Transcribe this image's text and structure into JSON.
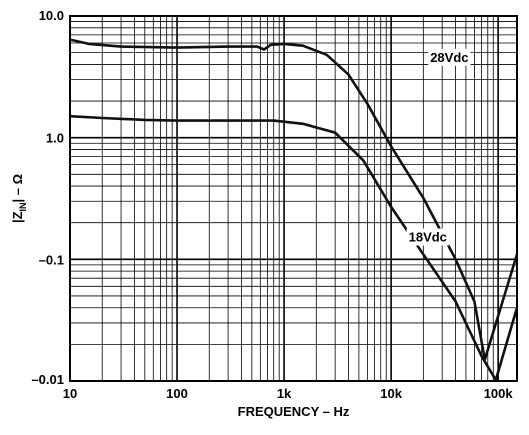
{
  "chart_data": {
    "type": "line",
    "xlabel": "FREQUENCY – Hz",
    "ylabel_main": "|Z",
    "ylabel_sub": "IN",
    "ylabel_tail": "| – Ω",
    "x_scale": "log",
    "y_scale": "log",
    "xlim": [
      10,
      150000
    ],
    "ylim": [
      0.01,
      10
    ],
    "grid": true,
    "x_ticks": [
      {
        "value": 10,
        "label": "10"
      },
      {
        "value": 100,
        "label": "100"
      },
      {
        "value": 1000,
        "label": "1k"
      },
      {
        "value": 10000,
        "label": "10k"
      },
      {
        "value": 100000,
        "label": "100k"
      }
    ],
    "y_ticks": [
      {
        "value": 10,
        "label": "10.0"
      },
      {
        "value": 1,
        "label": "1.0"
      },
      {
        "value": 0.1,
        "label": "–0.1"
      },
      {
        "value": 0.01,
        "label": "–0.01"
      }
    ],
    "series": [
      {
        "name": "28Vdc",
        "points": [
          [
            10,
            6.4
          ],
          [
            15,
            5.9
          ],
          [
            30,
            5.6
          ],
          [
            100,
            5.5
          ],
          [
            300,
            5.6
          ],
          [
            560,
            5.6
          ],
          [
            650,
            5.3
          ],
          [
            750,
            5.8
          ],
          [
            1000,
            5.9
          ],
          [
            1500,
            5.7
          ],
          [
            2500,
            4.8
          ],
          [
            4000,
            3.3
          ],
          [
            6000,
            1.9
          ],
          [
            10000,
            0.85
          ],
          [
            20000,
            0.32
          ],
          [
            40000,
            0.1
          ],
          [
            60000,
            0.045
          ],
          [
            75000,
            0.015
          ],
          [
            150000,
            0.11
          ]
        ]
      },
      {
        "name": "18Vdc",
        "points": [
          [
            10,
            1.5
          ],
          [
            20,
            1.45
          ],
          [
            50,
            1.4
          ],
          [
            100,
            1.38
          ],
          [
            300,
            1.38
          ],
          [
            800,
            1.38
          ],
          [
            1500,
            1.3
          ],
          [
            3000,
            1.1
          ],
          [
            5500,
            0.65
          ],
          [
            10000,
            0.27
          ],
          [
            20000,
            0.11
          ],
          [
            40000,
            0.045
          ],
          [
            70000,
            0.016
          ],
          [
            95000,
            0.0102
          ],
          [
            150000,
            0.04
          ]
        ]
      }
    ]
  }
}
